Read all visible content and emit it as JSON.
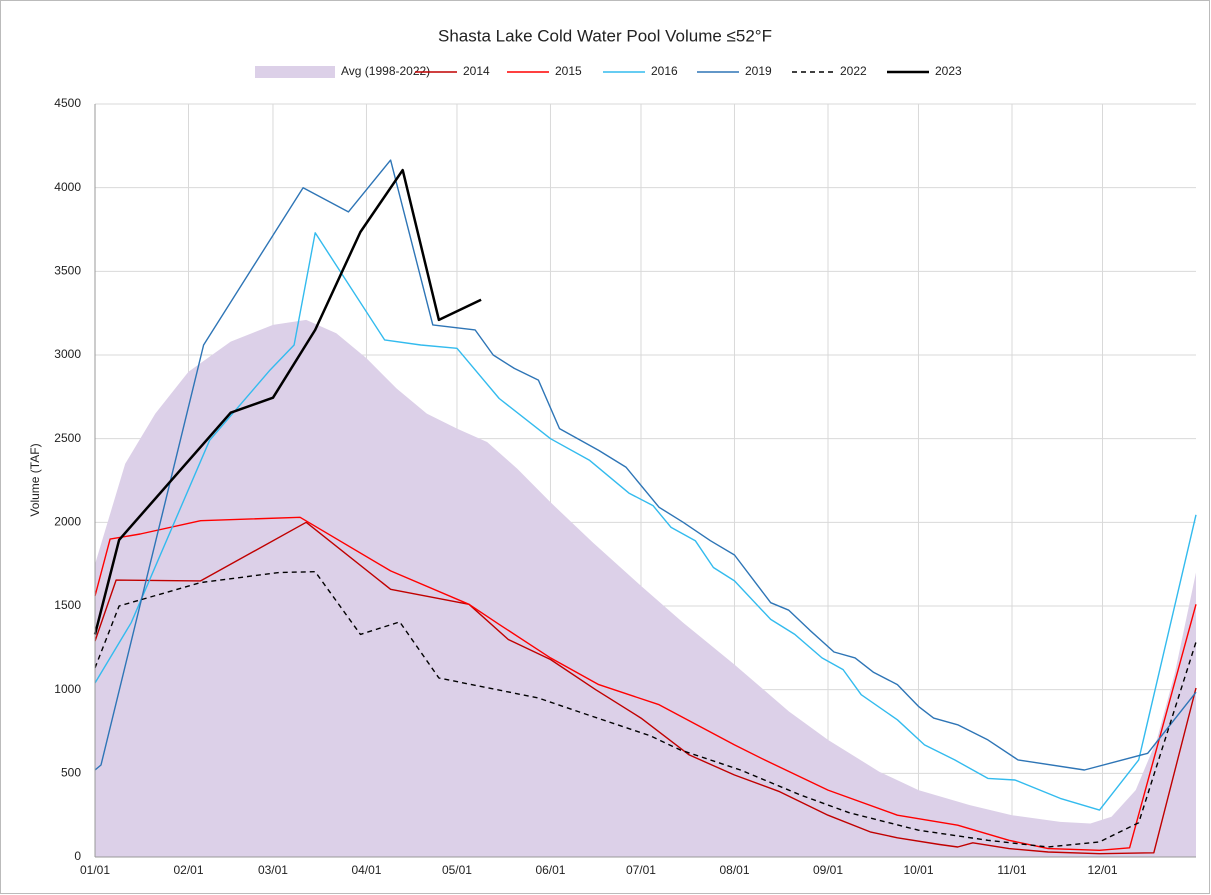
{
  "chart_data": {
    "type": "line",
    "title": "Shasta Lake Cold Water Pool Volume ≤52°F",
    "y_label": "Volume (TAF)",
    "xlim": [
      0,
      365
    ],
    "xticks": [
      {
        "value": 0,
        "label": "01/01"
      },
      {
        "value": 31,
        "label": "02/01"
      },
      {
        "value": 59,
        "label": "03/01"
      },
      {
        "value": 90,
        "label": "04/01"
      },
      {
        "value": 120,
        "label": "05/01"
      },
      {
        "value": 151,
        "label": "06/01"
      },
      {
        "value": 181,
        "label": "07/01"
      },
      {
        "value": 212,
        "label": "08/01"
      },
      {
        "value": 243,
        "label": "09/01"
      },
      {
        "value": 273,
        "label": "10/01"
      },
      {
        "value": 304,
        "label": "11/01"
      },
      {
        "value": 334,
        "label": "12/01"
      }
    ],
    "ylim": [
      0,
      4500
    ],
    "yticks": [
      0,
      500,
      1000,
      1500,
      2000,
      2500,
      3000,
      3500,
      4000,
      4500
    ],
    "grid": true,
    "legend": "top",
    "series": [
      {
        "name": "Avg (1998-2022)",
        "color": "#dcd0e8",
        "style": "area",
        "x": [
          0,
          10,
          20,
          31,
          45,
          59,
          70,
          80,
          90,
          100,
          110,
          120,
          130,
          140,
          151,
          165,
          181,
          195,
          212,
          230,
          243,
          260,
          273,
          290,
          304,
          320,
          330,
          337,
          345,
          352,
          358,
          365
        ],
        "values": [
          1750,
          2350,
          2650,
          2900,
          3080,
          3180,
          3210,
          3130,
          2980,
          2800,
          2650,
          2560,
          2480,
          2320,
          2120,
          1880,
          1620,
          1400,
          1150,
          870,
          700,
          510,
          400,
          310,
          250,
          210,
          200,
          240,
          400,
          700,
          1100,
          1700
        ]
      },
      {
        "name": "2014",
        "color": "#c00000",
        "style": "solid",
        "x": [
          0,
          7,
          35,
          70,
          98,
          124,
          137,
          151,
          166,
          181,
          197,
          212,
          227,
          243,
          257,
          266,
          280,
          286,
          291,
          303,
          316,
          333,
          351,
          365
        ],
        "values": [
          1290,
          1655,
          1650,
          2000,
          1600,
          1510,
          1300,
          1180,
          1000,
          830,
          610,
          490,
          390,
          250,
          150,
          115,
          75,
          60,
          85,
          50,
          30,
          20,
          25,
          1010
        ]
      },
      {
        "name": "2015",
        "color": "#ff0000",
        "style": "solid",
        "x": [
          0,
          5,
          15,
          35,
          68,
          98,
          124,
          134,
          151,
          167,
          187,
          212,
          222,
          243,
          266,
          286,
          303,
          316,
          333,
          343,
          365
        ],
        "values": [
          1560,
          1900,
          1930,
          2010,
          2030,
          1710,
          1510,
          1390,
          1190,
          1030,
          910,
          670,
          580,
          400,
          250,
          190,
          100,
          50,
          40,
          55,
          1510
        ]
      },
      {
        "name": "2016",
        "color": "#33bbee",
        "style": "solid",
        "x": [
          0,
          12,
          38,
          58,
          66,
          73,
          96,
          108,
          120,
          134,
          151,
          164,
          177,
          185,
          191,
          199,
          205,
          212,
          224,
          232,
          241,
          248,
          254,
          266,
          275,
          285,
          296,
          305,
          320,
          333,
          346,
          365
        ],
        "values": [
          1040,
          1400,
          2490,
          2910,
          3060,
          3730,
          3090,
          3060,
          3040,
          2740,
          2500,
          2370,
          2175,
          2100,
          1970,
          1890,
          1730,
          1650,
          1420,
          1330,
          1190,
          1120,
          970,
          820,
          670,
          580,
          470,
          460,
          350,
          280,
          580,
          2045
        ]
      },
      {
        "name": "2019",
        "color": "#2e75b6",
        "style": "solid",
        "x": [
          0,
          2,
          36,
          69,
          84,
          98,
          112,
          126,
          132,
          139,
          147,
          154,
          167,
          176,
          187,
          195,
          204,
          212,
          224,
          230,
          237,
          245,
          252,
          258,
          266,
          273,
          278,
          286,
          296,
          306,
          328,
          349,
          365
        ],
        "values": [
          520,
          550,
          3060,
          4000,
          3855,
          4165,
          3180,
          3150,
          3000,
          2920,
          2850,
          2560,
          2430,
          2330,
          2090,
          2000,
          1890,
          1805,
          1520,
          1475,
          1355,
          1225,
          1190,
          1105,
          1030,
          900,
          830,
          790,
          700,
          580,
          520,
          620,
          985
        ]
      },
      {
        "name": "2022",
        "color": "#000000",
        "style": "dashed",
        "x": [
          0,
          8,
          35,
          61,
          73,
          88,
          101,
          114,
          147,
          160,
          184,
          194,
          214,
          234,
          250,
          273,
          296,
          316,
          333,
          346,
          365
        ],
        "values": [
          1130,
          1500,
          1640,
          1700,
          1705,
          1330,
          1405,
          1070,
          950,
          870,
          725,
          640,
          520,
          370,
          265,
          160,
          100,
          60,
          90,
          205,
          1285
        ]
      },
      {
        "name": "2023",
        "color": "#000000",
        "style": "thick",
        "x": [
          0,
          8,
          45,
          59,
          73,
          88,
          102,
          114,
          128
        ],
        "values": [
          1330,
          1895,
          2655,
          2745,
          3150,
          3735,
          4105,
          3210,
          3330
        ]
      }
    ]
  }
}
